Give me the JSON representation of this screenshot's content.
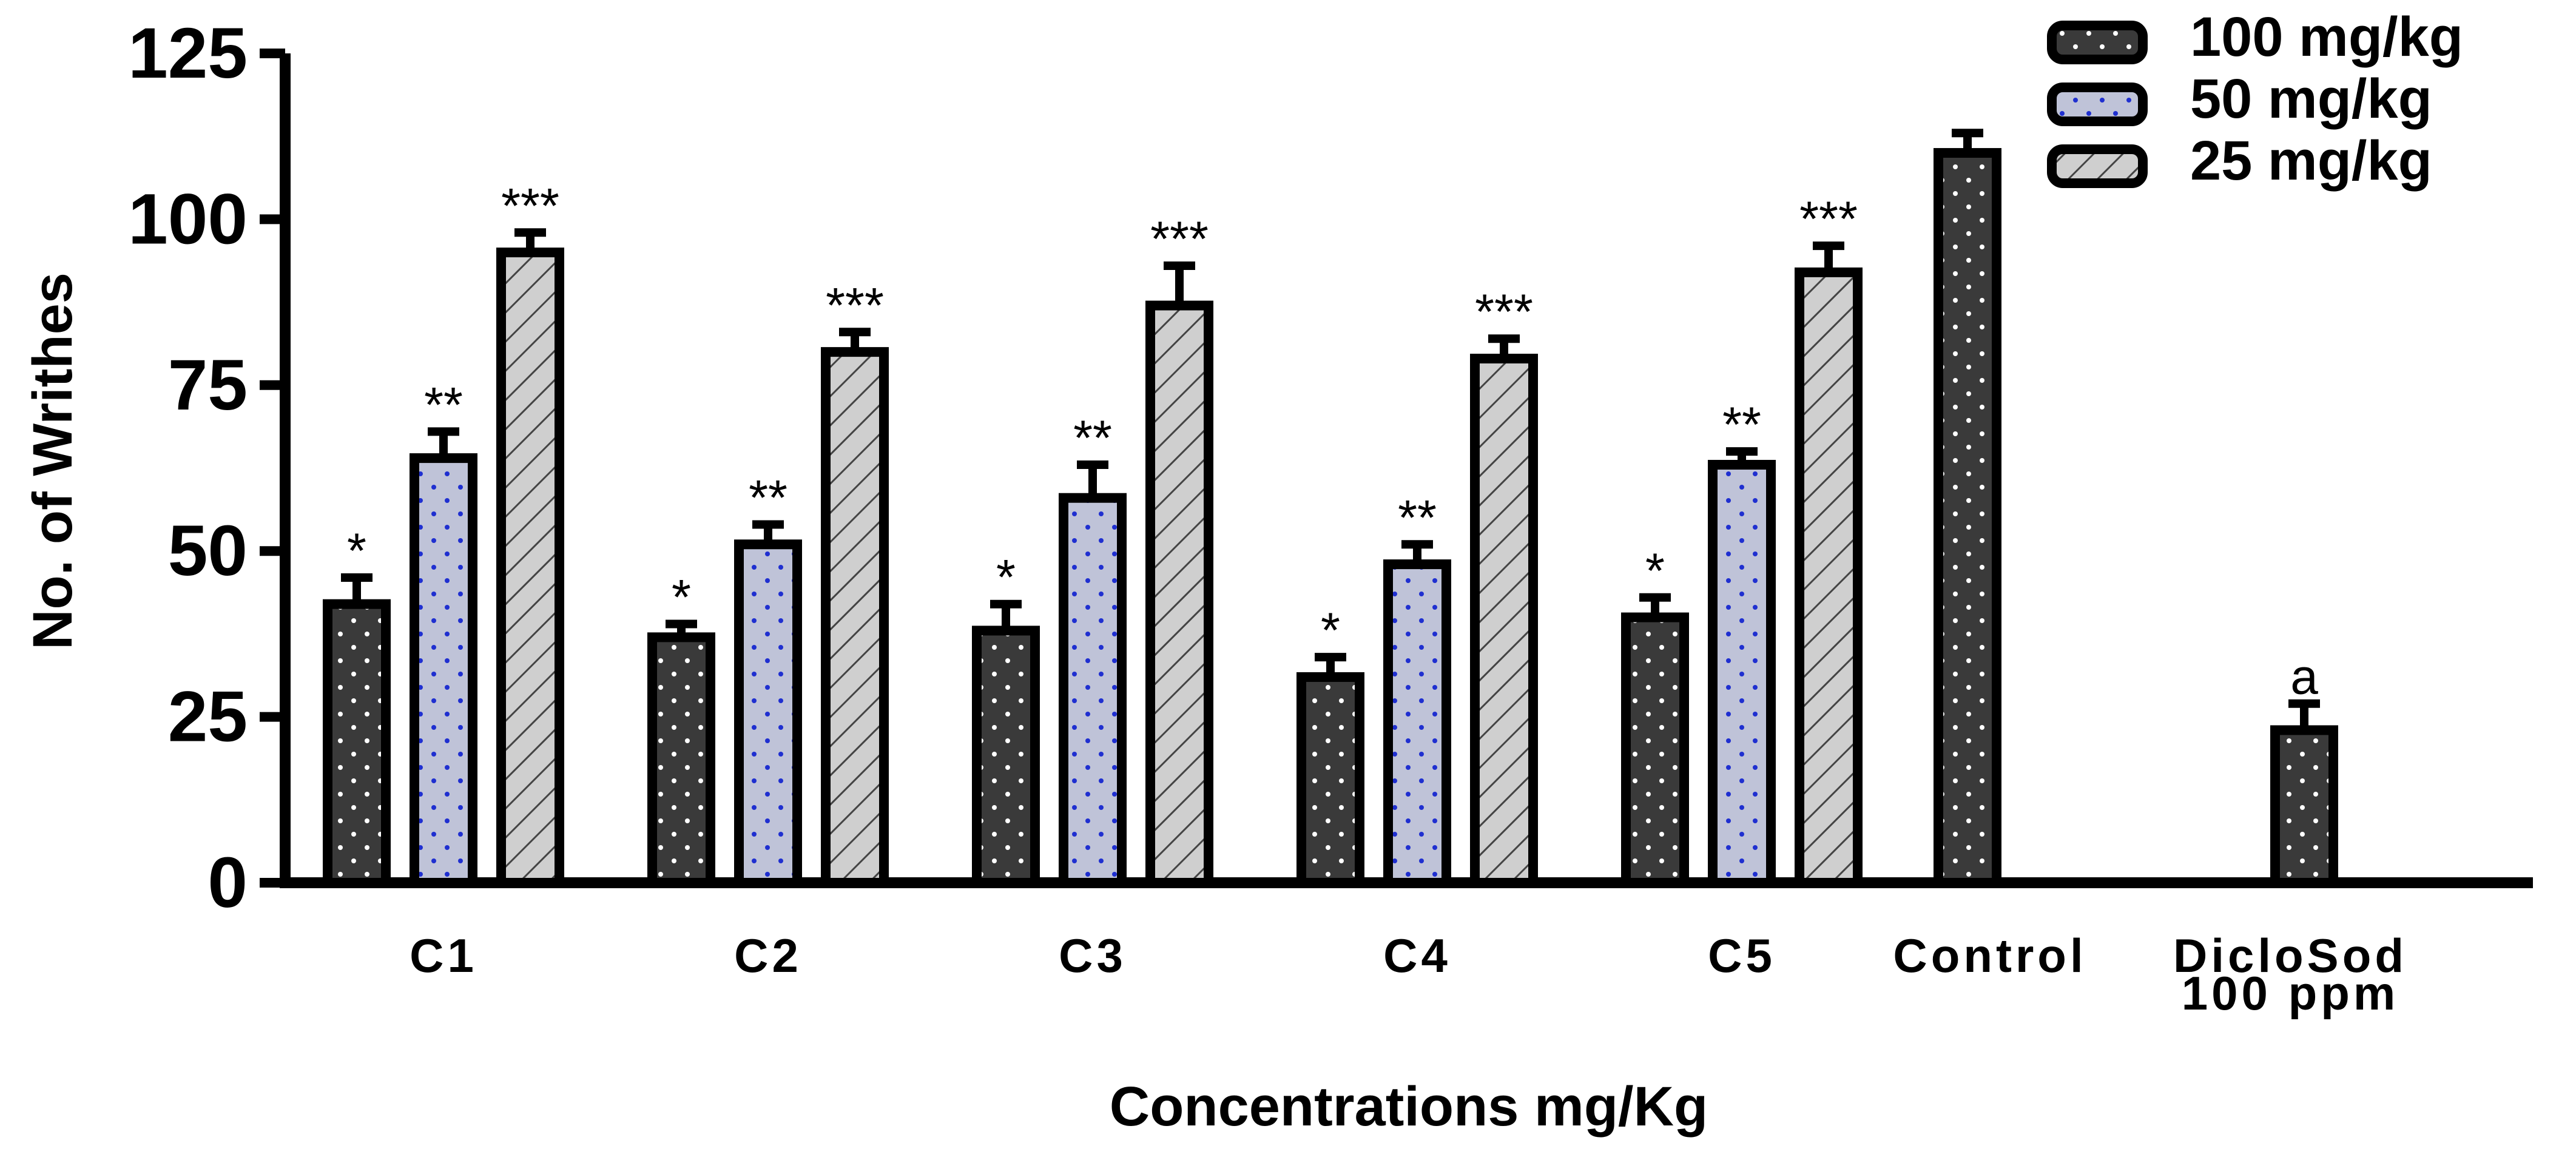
{
  "chart_data": {
    "type": "bar",
    "title": "",
    "xlabel": "Concentrations mg/Kg",
    "ylabel": "No. of Writhes",
    "ylim": [
      0,
      125
    ],
    "yticks": [
      "0",
      "25",
      "50",
      "75",
      "100",
      "125"
    ],
    "grid": false,
    "legend_position": "top-right",
    "series_defs": [
      {
        "name": "100 mg/kg",
        "fill": "#3a3a3a",
        "dot": "#ffffff",
        "pattern": "dots-white"
      },
      {
        "name": "50 mg/kg",
        "fill": "#bfc3d8",
        "dot": "#1f2fd0",
        "pattern": "dots-blue"
      },
      {
        "name": "25 mg/kg",
        "fill": "#cfcfcf",
        "dot": "#333333",
        "pattern": "hatch"
      }
    ],
    "groups": [
      {
        "category": [
          "C1"
        ],
        "bars": [
          {
            "series": 0,
            "value": 42,
            "error": 4,
            "sig": "*"
          },
          {
            "series": 1,
            "value": 64,
            "error": 4,
            "sig": "**"
          },
          {
            "series": 2,
            "value": 95,
            "error": 3,
            "sig": "***"
          }
        ]
      },
      {
        "category": [
          "C2"
        ],
        "bars": [
          {
            "series": 0,
            "value": 37,
            "error": 2,
            "sig": "*"
          },
          {
            "series": 1,
            "value": 51,
            "error": 3,
            "sig": "**"
          },
          {
            "series": 2,
            "value": 80,
            "error": 3,
            "sig": "***"
          }
        ]
      },
      {
        "category": [
          "C3"
        ],
        "bars": [
          {
            "series": 0,
            "value": 38,
            "error": 4,
            "sig": "*"
          },
          {
            "series": 1,
            "value": 58,
            "error": 5,
            "sig": "**"
          },
          {
            "series": 2,
            "value": 87,
            "error": 6,
            "sig": "***"
          }
        ]
      },
      {
        "category": [
          "C4"
        ],
        "bars": [
          {
            "series": 0,
            "value": 31,
            "error": 3,
            "sig": "*"
          },
          {
            "series": 1,
            "value": 48,
            "error": 3,
            "sig": "**"
          },
          {
            "series": 2,
            "value": 79,
            "error": 3,
            "sig": "***"
          }
        ]
      },
      {
        "category": [
          "C5"
        ],
        "bars": [
          {
            "series": 0,
            "value": 40,
            "error": 3,
            "sig": "*"
          },
          {
            "series": 1,
            "value": 63,
            "error": 2,
            "sig": "**"
          },
          {
            "series": 2,
            "value": 92,
            "error": 4,
            "sig": "***"
          }
        ]
      },
      {
        "category": [
          "Control"
        ],
        "bars": [
          {
            "series": 0,
            "value": 110,
            "error": 3,
            "sig": ""
          }
        ]
      },
      {
        "category": [
          "DicloSod",
          "100 ppm"
        ],
        "bars": [
          {
            "series": 0,
            "value": 23,
            "error": 4,
            "sig": "a"
          }
        ]
      }
    ]
  }
}
